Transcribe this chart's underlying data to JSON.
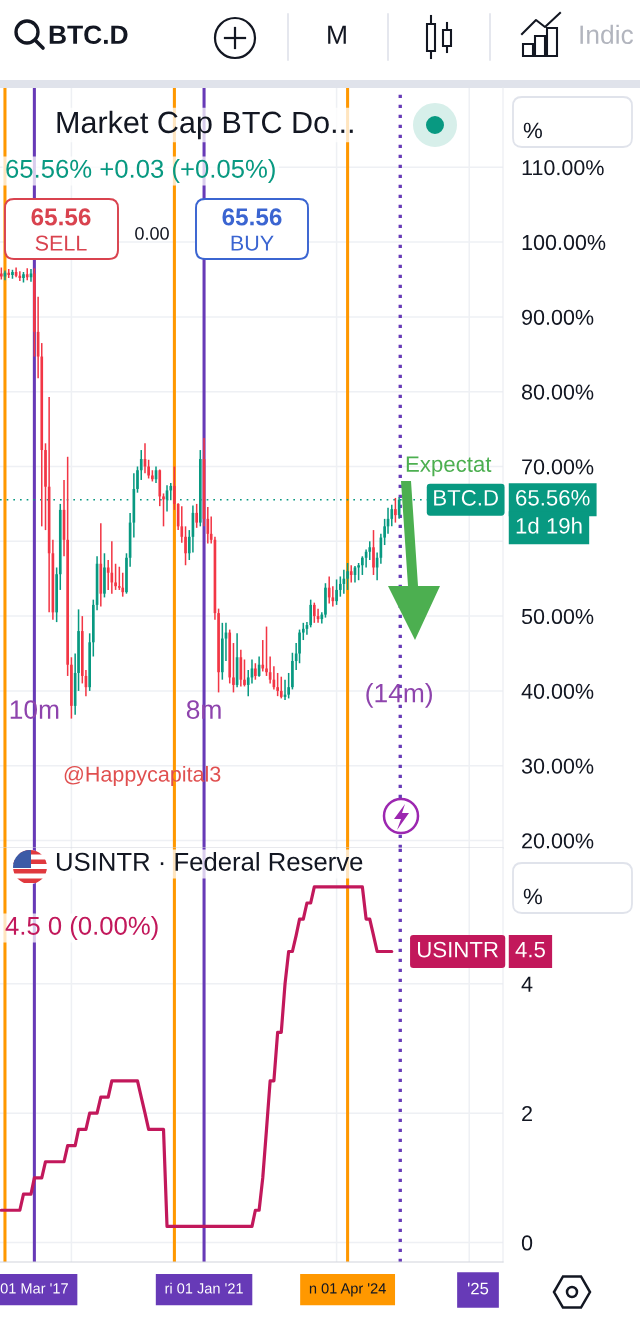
{
  "chart_data": [
    {
      "type": "candlestick",
      "title": "Market Cap BTC Do...",
      "subtitle": "65.56% +0.03 (+0.05%)",
      "ylabel": "%",
      "annotations": [
        "BTC.D",
        "M",
        "Indic",
        "65.56",
        "SELL",
        "0.00",
        "65.56",
        "BUY",
        {
          "text": "10m",
          "x": "2017-03",
          "y": 37.2
        },
        {
          "text": "8m",
          "x": "2021-01",
          "y": 37.2
        },
        {
          "text": "(14m)",
          "x": "2025-06",
          "y": 39.4
        },
        "Expectat",
        "@Happycapital3",
        "65.56%",
        "1d 19h"
      ],
      "x": [
        "2016-06",
        "2016-07",
        "2016-08",
        "2016-09",
        "2016-10",
        "2016-11",
        "2016-12",
        "2017-01",
        "2017-02",
        "2017-03",
        "2017-04",
        "2017-05",
        "2017-06",
        "2017-07",
        "2017-08",
        "2017-09",
        "2017-10",
        "2017-11",
        "2017-12",
        "2018-01",
        "2018-02",
        "2018-03",
        "2018-04",
        "2018-05",
        "2018-06",
        "2018-07",
        "2018-08",
        "2018-09",
        "2018-10",
        "2018-11",
        "2018-12",
        "2019-01",
        "2019-02",
        "2019-03",
        "2019-04",
        "2019-05",
        "2019-06",
        "2019-07",
        "2019-08",
        "2019-09",
        "2019-10",
        "2019-11",
        "2019-12",
        "2020-01",
        "2020-02",
        "2020-03",
        "2020-04",
        "2020-05",
        "2020-06",
        "2020-07",
        "2020-08",
        "2020-09",
        "2020-10",
        "2020-11",
        "2020-12",
        "2021-01",
        "2021-02",
        "2021-03",
        "2021-04",
        "2021-05",
        "2021-06",
        "2021-07",
        "2021-08",
        "2021-09",
        "2021-10",
        "2021-11",
        "2021-12",
        "2022-01",
        "2022-02",
        "2022-03",
        "2022-04",
        "2022-05",
        "2022-06",
        "2022-07",
        "2022-08",
        "2022-09",
        "2022-10",
        "2022-11",
        "2022-12",
        "2023-01",
        "2023-02",
        "2023-03",
        "2023-04",
        "2023-05",
        "2023-06",
        "2023-07",
        "2023-08",
        "2023-09",
        "2023-10",
        "2023-11",
        "2023-12",
        "2024-01",
        "2024-02",
        "2024-03",
        "2024-04",
        "2024-05",
        "2024-06",
        "2024-07",
        "2024-08",
        "2024-09",
        "2024-10",
        "2024-11",
        "2024-12",
        "2025-01",
        "2025-02",
        "2025-03",
        "2025-04",
        "2025-05",
        "2025-06"
      ],
      "ohlc": [
        [
          95.8,
          96.6,
          95.0,
          95.4
        ],
        [
          95.4,
          96.2,
          94.9,
          95.9
        ],
        [
          95.9,
          96.4,
          95.2,
          95.6
        ],
        [
          95.6,
          96.3,
          95.1,
          96.0
        ],
        [
          96.0,
          96.6,
          95.3,
          95.5
        ],
        [
          95.5,
          96.1,
          94.8,
          95.2
        ],
        [
          95.2,
          96.0,
          94.6,
          95.7
        ],
        [
          95.7,
          96.5,
          94.9,
          95.3
        ],
        [
          95.3,
          96.4,
          94.7,
          95.8
        ],
        [
          95.8,
          96.5,
          84.7,
          88.0
        ],
        [
          88.0,
          92.7,
          81.8,
          84.7
        ],
        [
          84.7,
          86.5,
          62.0,
          72.2
        ],
        [
          72.2,
          73.1,
          61.5,
          67.3
        ],
        [
          67.3,
          79.3,
          50.5,
          58.4
        ],
        [
          58.4,
          60.2,
          49.5,
          50.5
        ],
        [
          50.5,
          56.5,
          49.2,
          55.6
        ],
        [
          55.6,
          65.0,
          53.5,
          64.2
        ],
        [
          64.2,
          68.2,
          58.0,
          60.2
        ],
        [
          60.2,
          71.3,
          42.0,
          43.5
        ],
        [
          43.5,
          44.5,
          36.3,
          38.0
        ],
        [
          38.0,
          45.0,
          36.8,
          42.4
        ],
        [
          42.4,
          50.9,
          40.0,
          48.0
        ],
        [
          48.0,
          50.0,
          41.0,
          42.0
        ],
        [
          42.0,
          42.8,
          39.3,
          40.5
        ],
        [
          40.5,
          47.7,
          40.0,
          46.5
        ],
        [
          46.5,
          52.2,
          44.6,
          51.5
        ],
        [
          51.5,
          58.0,
          50.8,
          57.0
        ],
        [
          57.0,
          62.4,
          51.3,
          53.0
        ],
        [
          53.0,
          58.4,
          52.5,
          56.5
        ],
        [
          56.5,
          57.5,
          53.5,
          55.8
        ],
        [
          55.8,
          60.0,
          53.0,
          54.5
        ],
        [
          54.5,
          57.0,
          53.5,
          54.0
        ],
        [
          54.0,
          56.6,
          53.5,
          53.8
        ],
        [
          53.8,
          55.8,
          52.6,
          53.2
        ],
        [
          53.2,
          58.4,
          53.0,
          57.8
        ],
        [
          57.8,
          63.8,
          56.6,
          62.5
        ],
        [
          62.5,
          69.1,
          60.5,
          67.0
        ],
        [
          67.0,
          70.0,
          66.5,
          69.5
        ],
        [
          69.5,
          72.2,
          68.2,
          71.0
        ],
        [
          71.0,
          73.1,
          69.1,
          70.0
        ],
        [
          70.0,
          70.9,
          68.4,
          68.8
        ],
        [
          68.8,
          69.5,
          68.0,
          68.3
        ],
        [
          68.3,
          70.0,
          67.8,
          69.5
        ],
        [
          69.5,
          69.6,
          64.7,
          66.0
        ],
        [
          66.0,
          66.4,
          62.0,
          65.6
        ],
        [
          65.6,
          67.5,
          64.0,
          66.8
        ],
        [
          66.8,
          67.8,
          65.5,
          67.4
        ],
        [
          67.4,
          70.0,
          64.2,
          65.0
        ],
        [
          65.0,
          65.1,
          61.5,
          62.0
        ],
        [
          62.0,
          64.7,
          59.8,
          60.6
        ],
        [
          60.6,
          62.0,
          56.8,
          58.4
        ],
        [
          58.4,
          61.5,
          57.5,
          60.6
        ],
        [
          60.6,
          64.8,
          58.5,
          63.8
        ],
        [
          63.8,
          65.0,
          61.8,
          62.5
        ],
        [
          62.5,
          72.2,
          62.0,
          71.0
        ],
        [
          71.0,
          73.8,
          62.0,
          63.0
        ],
        [
          63.0,
          64.6,
          59.7,
          61.0
        ],
        [
          61.0,
          63.3,
          59.7,
          60.2
        ],
        [
          60.2,
          60.6,
          49.5,
          50.4
        ],
        [
          50.4,
          51.0,
          39.8,
          42.5
        ],
        [
          42.5,
          49.1,
          41.5,
          47.0
        ],
        [
          47.0,
          49.1,
          44.0,
          47.8
        ],
        [
          47.8,
          48.2,
          41.0,
          41.8
        ],
        [
          41.8,
          46.4,
          39.8,
          40.8
        ],
        [
          40.8,
          47.7,
          40.5,
          44.5
        ],
        [
          44.5,
          45.5,
          40.6,
          41.5
        ],
        [
          41.5,
          44.2,
          40.6,
          40.8
        ],
        [
          40.8,
          42.8,
          39.3,
          41.8
        ],
        [
          41.8,
          44.2,
          41.0,
          43.0
        ],
        [
          43.0,
          43.7,
          41.5,
          42.0
        ],
        [
          42.0,
          44.6,
          41.9,
          43.5
        ],
        [
          43.5,
          46.8,
          42.6,
          43.0
        ],
        [
          43.0,
          48.6,
          42.0,
          42.5
        ],
        [
          42.5,
          44.6,
          41.0,
          41.5
        ],
        [
          41.5,
          43.3,
          40.2,
          40.5
        ],
        [
          40.5,
          42.4,
          39.3,
          40.0
        ],
        [
          40.0,
          41.9,
          39.0,
          39.2
        ],
        [
          39.2,
          41.5,
          38.8,
          39.5
        ],
        [
          39.5,
          42.4,
          39.0,
          40.5
        ],
        [
          40.5,
          45.1,
          40.2,
          44.0
        ],
        [
          44.0,
          46.4,
          42.8,
          45.0
        ],
        [
          45.0,
          48.2,
          43.7,
          47.8
        ],
        [
          47.8,
          49.1,
          46.8,
          48.3
        ],
        [
          48.3,
          49.2,
          47.5,
          48.8
        ],
        [
          48.8,
          52.2,
          48.5,
          51.5
        ],
        [
          51.5,
          51.8,
          49.1,
          50.0
        ],
        [
          50.0,
          51.0,
          49.1,
          49.6
        ],
        [
          49.6,
          50.5,
          49.0,
          50.2
        ],
        [
          50.2,
          54.4,
          49.8,
          53.8
        ],
        [
          53.8,
          55.3,
          51.7,
          52.5
        ],
        [
          52.5,
          54.0,
          51.3,
          52.0
        ],
        [
          52.0,
          54.9,
          51.5,
          53.5
        ],
        [
          53.5,
          55.3,
          52.6,
          54.3
        ],
        [
          54.3,
          56.2,
          53.0,
          55.0
        ],
        [
          55.0,
          57.1,
          53.5,
          56.0
        ],
        [
          56.0,
          56.8,
          54.5,
          55.5
        ],
        [
          55.5,
          56.7,
          54.5,
          56.5
        ],
        [
          56.5,
          57.1,
          54.8,
          56.8
        ],
        [
          56.8,
          58.0,
          55.5,
          57.8
        ],
        [
          57.8,
          58.9,
          56.5,
          58.6
        ],
        [
          58.6,
          60.0,
          57.5,
          59.2
        ],
        [
          59.2,
          61.5,
          55.5,
          56.5
        ],
        [
          56.5,
          58.5,
          54.8,
          57.8
        ],
        [
          57.8,
          61.0,
          57.0,
          60.5
        ],
        [
          60.5,
          63.0,
          59.5,
          62.0
        ],
        [
          62.0,
          64.5,
          61.0,
          63.0
        ],
        [
          63.0,
          64.9,
          62.0,
          64.3
        ],
        [
          64.3,
          65.8,
          62.5,
          63.5
        ],
        [
          63.5,
          65.9,
          63.0,
          65.56
        ]
      ],
      "colors": [
        "#f23645",
        "#089981",
        "#f23645",
        "#089981",
        "#f23645",
        "#f23645",
        "#089981",
        "#f23645",
        "#089981",
        "#f23645",
        "#f23645",
        "#f23645",
        "#f23645",
        "#f23645",
        "#f23645",
        "#089981",
        "#089981",
        "#f23645",
        "#f23645",
        "#f23645",
        "#089981",
        "#089981",
        "#f23645",
        "#f23645",
        "#089981",
        "#089981",
        "#089981",
        "#f23645",
        "#089981",
        "#f23645",
        "#f23645",
        "#f23645",
        "#f23645",
        "#f23645",
        "#089981",
        "#089981",
        "#089981",
        "#089981",
        "#089981",
        "#f23645",
        "#f23645",
        "#f23645",
        "#089981",
        "#f23645",
        "#f23645",
        "#089981",
        "#089981",
        "#f23645",
        "#f23645",
        "#f23645",
        "#f23645",
        "#089981",
        "#089981",
        "#f23645",
        "#089981",
        "#f23645",
        "#f23645",
        "#f23645",
        "#f23645",
        "#f23645",
        "#089981",
        "#089981",
        "#f23645",
        "#f23645",
        "#089981",
        "#f23645",
        "#f23645",
        "#089981",
        "#089981",
        "#f23645",
        "#089981",
        "#f23645",
        "#f23645",
        "#f23645",
        "#f23645",
        "#f23645",
        "#f23645",
        "#089981",
        "#089981",
        "#089981",
        "#089981",
        "#089981",
        "#089981",
        "#089981",
        "#089981",
        "#f23645",
        "#f23645",
        "#089981",
        "#089981",
        "#f23645",
        "#f23645",
        "#089981",
        "#089981",
        "#089981",
        "#089981",
        "#f23645",
        "#089981",
        "#089981",
        "#089981",
        "#089981",
        "#089981",
        "#f23645",
        "#089981",
        "#089981",
        "#089981",
        "#089981",
        "#089981",
        "#f23645",
        "#089981"
      ],
      "xlim": [
        "2016-05-21",
        "2027-10-07"
      ],
      "ylim": [
        19,
        120.6
      ],
      "xticks": [
        {
          "value": "2018-01",
          "label": null
        },
        {
          "value": "2021-01",
          "label": null
        },
        {
          "value": "2024-01",
          "label": null
        },
        {
          "value": "2027-01",
          "label": null
        }
      ],
      "yticks": [
        {
          "value": 20,
          "label": "20.00%"
        },
        {
          "value": 30,
          "label": "30.00%"
        },
        {
          "value": 40,
          "label": "40.00%"
        },
        {
          "value": 50,
          "label": "50.00%"
        },
        {
          "value": 60,
          "label": null
        },
        {
          "value": 70,
          "label": "70.00%"
        },
        {
          "value": 80,
          "label": "80.00%"
        },
        {
          "value": 90,
          "label": "90.00%"
        },
        {
          "value": 100,
          "label": "100.00%"
        },
        {
          "value": 110,
          "label": "110.00%"
        }
      ],
      "grid": true,
      "tick_labels": "y",
      "ref_lines": [
        {
          "axis": "x",
          "value": "2016-07",
          "color": "#ff9800"
        },
        {
          "axis": "x",
          "value": "2017-03",
          "color": "#673ab7"
        },
        {
          "axis": "x",
          "value": "2020-05",
          "color": "#ff9800"
        },
        {
          "axis": "x",
          "value": "2021-01",
          "color": "#673ab7"
        },
        {
          "axis": "x",
          "value": "2024-04",
          "color": "#ff9800"
        },
        {
          "axis": "x",
          "value": "2025-06-10",
          "color": "#673ab7",
          "line_style": "dotted"
        },
        {
          "axis": "y",
          "value": 65.56,
          "label": "BTC.D",
          "color": "#089981",
          "line_style": "dotted"
        }
      ]
    },
    {
      "type": "line",
      "title": "USINTR · Federal Reserve",
      "subtitle": "4.5 0 (0.00%)",
      "ylabel": "%",
      "annotations": [
        "4.5",
        "'25"
      ],
      "x": [
        "2016-06",
        "2016-11",
        "2016-12",
        "2017-02",
        "2017-03",
        "2017-05",
        "2017-06",
        "2017-11",
        "2017-12",
        "2018-02",
        "2018-03",
        "2018-05",
        "2018-06",
        "2018-08",
        "2018-09",
        "2018-11",
        "2018-12",
        "2019-07",
        "2019-08",
        "2019-09",
        "2019-10",
        "2020-02",
        "2020-03",
        "2022-02",
        "2022-03",
        "2022-04",
        "2022-05",
        "2022-06",
        "2022-07",
        "2022-08",
        "2022-09",
        "2022-10",
        "2022-11",
        "2022-12",
        "2023-01",
        "2023-02",
        "2023-03",
        "2023-04",
        "2023-05",
        "2023-06",
        "2023-07",
        "2024-08",
        "2024-09",
        "2024-10",
        "2024-11",
        "2024-12",
        "2025-04"
      ],
      "series": [
        {
          "name": "USINTR",
          "color": "#c2185b",
          "values": [
            0.5,
            0.5,
            0.75,
            0.75,
            1.0,
            1.0,
            1.25,
            1.25,
            1.5,
            1.5,
            1.75,
            1.75,
            2.0,
            2.0,
            2.25,
            2.25,
            2.5,
            2.5,
            2.25,
            2.0,
            1.75,
            1.75,
            0.25,
            0.25,
            0.5,
            0.5,
            1.0,
            1.75,
            2.5,
            2.5,
            3.25,
            3.25,
            4.0,
            4.5,
            4.5,
            4.75,
            5.0,
            5.0,
            5.25,
            5.25,
            5.5,
            5.5,
            5.0,
            5.0,
            4.75,
            4.5,
            4.5
          ]
        }
      ],
      "xlim": [
        "2016-05-21",
        "2027-10-07"
      ],
      "ylim": [
        -0.3,
        6.1
      ],
      "xticks": [
        {
          "value": "2017-03",
          "label": "01 Mar '17"
        },
        {
          "value": "2018-01",
          "label": null
        },
        {
          "value": "2021-01",
          "label": "ri 01 Jan '21"
        },
        {
          "value": "2024-01",
          "label": null
        },
        {
          "value": "2024-04",
          "label": "n 01 Apr '24"
        },
        {
          "value": "2027-01",
          "label": null
        }
      ],
      "yticks": [
        0,
        2,
        4
      ],
      "grid": true,
      "ref_lines": [
        {
          "axis": "x",
          "value": "2016-07",
          "color": "#ff9800"
        },
        {
          "axis": "x",
          "value": "2017-03",
          "color": "#673ab7"
        },
        {
          "axis": "x",
          "value": "2020-05",
          "color": "#ff9800"
        },
        {
          "axis": "x",
          "value": "2021-01",
          "color": "#673ab7"
        },
        {
          "axis": "x",
          "value": "2024-04",
          "color": "#ff9800"
        },
        {
          "axis": "x",
          "value": "2025-06-10",
          "color": "#673ab7",
          "line_style": "dotted"
        }
      ]
    }
  ]
}
